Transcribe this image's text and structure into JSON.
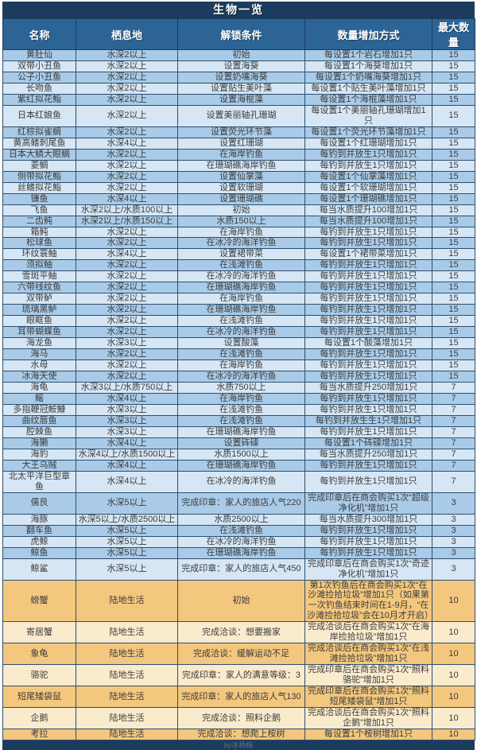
{
  "title": "生物一览",
  "footer_credit": "by冰杨梅",
  "colors": {
    "navy": "#1c3c5d",
    "header_blue": "#2c6496",
    "grid": "#2b4f70",
    "sea_row_dark": "#a9cbe8",
    "sea_row_light": "#d6e6f4",
    "land_row_dark": "#f3c77d",
    "land_row_light": "#fbebcd"
  },
  "table": {
    "columns": [
      "名称",
      "栖息地",
      "解锁条件",
      "数量增加方式",
      "最大数量"
    ],
    "land_habitat_label": "陆地生活",
    "rows": [
      [
        "黄肚仙",
        "水深2以上",
        "初始",
        "每设置1个岩石增加1只",
        "15"
      ],
      [
        "双带小丑鱼",
        "水深2以上",
        "设置海葵",
        "每设置1个海葵增加1只",
        "15"
      ],
      [
        "公子小丑鱼",
        "水深2以上",
        "设置奶嘴海葵",
        "每设置1个奶嘴海葵增加1只",
        "15"
      ],
      [
        "长吻鱼",
        "水深2以上",
        "设置贴生美叶藻",
        "每设置1个贴生美叶藻增加1只",
        "15"
      ],
      [
        "紫红拟花鮨",
        "水深2以上",
        "设置海棍藻",
        "每设置1个海棍藻增加1只",
        "15"
      ],
      [
        "日本红娘鱼",
        "水深2以上",
        "设置美丽轴孔珊瑚",
        "每设置1个美丽轴孔珊瑚增加1只",
        "15"
      ],
      [
        "红棕拟雀鲷",
        "水深2以上",
        "设置荧光环节藻",
        "每设置1个荧光环节藻增加1只",
        "15"
      ],
      [
        "黄高鳍刺尾鱼",
        "水深4以上",
        "设置红珊瑚",
        "每设置1个红珊瑚增加1只",
        "15"
      ],
      [
        "日本大鳞大眼鲷",
        "水深2以上",
        "在海岸钓鱼",
        "每钓到并放生1只增加1只",
        "15"
      ],
      [
        "菱鲷",
        "水深2以上",
        "在珊瑚礁海岸钓鱼",
        "每钓到并放生1只增加1只",
        "15"
      ],
      [
        "侧带拟花鮨",
        "水深2以上",
        "设置仙掌藻",
        "每设置1个仙掌藻增加1只",
        "15"
      ],
      [
        "丝鳍拟花鮨",
        "水深2以上",
        "设置软珊瑚",
        "每设置1个软珊瑚增加1只",
        "15"
      ],
      [
        "镰鱼",
        "水深4以上",
        "设置珊瑚礁",
        "每设置1个珊瑚礁增加1只",
        "15"
      ],
      [
        "飞鱼",
        "水深2以上/水质100以上",
        "初始",
        "每当水质提升100增加1只",
        "15"
      ],
      [
        "二齿鲀",
        "水深2以上/水质150以上",
        "水质150以上",
        "每当水质提升100增加1只",
        "15"
      ],
      [
        "箱鲀",
        "水深2以上",
        "在海岸钓鱼",
        "每钓到并放生1只增加1只",
        "15"
      ],
      [
        "松球鱼",
        "水深2以上",
        "在冰冷的海洋钓鱼",
        "每钓到并放生1只增加1只",
        "15"
      ],
      [
        "环纹蓑鲉",
        "水深4以上",
        "设置裙带菜",
        "每设置1个裙带菜增加1只",
        "15"
      ],
      [
        "须拟鲉",
        "水深2以上",
        "在浅滩钓鱼",
        "每钓到并放生1只增加1只",
        "15"
      ],
      [
        "雪斑平鲉",
        "水深2以上",
        "在冰冷的海洋钓鱼",
        "每钓到并放生1只增加1只",
        "15"
      ],
      [
        "六带线纹鱼",
        "水深2以上",
        "在珊瑚礁海岸钓鱼",
        "每钓到并放生1只增加1只",
        "15"
      ],
      [
        "双带鲈",
        "水深2以上",
        "在海岸钓鱼",
        "每钓到并放生1只增加1只",
        "15"
      ],
      [
        "琉璃黑鲈",
        "水深2以上",
        "在珊瑚礁海岸钓鱼",
        "每钓到并放生1只增加1只",
        "15"
      ],
      [
        "眼眶鱼",
        "水深2以上",
        "在浅滩钓鱼",
        "每钓到并放生1只增加1只",
        "15"
      ],
      [
        "耳带蝴蝶鱼",
        "水深2以上",
        "在冰冷的海洋钓鱼",
        "每钓到并放生1只增加1只",
        "15"
      ],
      [
        "海龙鱼",
        "水深3以上",
        "设置酸藻",
        "每设置1个酸藻增加1只",
        "15"
      ],
      [
        "海马",
        "水深2以上",
        "在浅滩钓鱼",
        "每钓到并放生1只增加1只",
        "15"
      ],
      [
        "水母",
        "水深2以上",
        "在海岸钓鱼",
        "每钓到并放生1只增加1只",
        "15"
      ],
      [
        "冰海天使",
        "水深2以上",
        "在冰冷的海洋钓鱼",
        "每钓到并放生1只增加1只",
        "15"
      ],
      [
        "海龟",
        "水深3以上/水质750以上",
        "水质750以上",
        "每当水质提升250增加1只",
        "7"
      ],
      [
        "鳐",
        "水深4以上",
        "在海岸钓鱼",
        "每钓到并放生1只增加1只",
        "7"
      ],
      [
        "多指鞭冠鮟鱇",
        "水深3以上",
        "在浅滩钓鱼",
        "每钓到并放生1只增加1只",
        "7"
      ],
      [
        "曲纹唇鱼",
        "水深3以上",
        "在浅滩钓鱼",
        "每钓到并放生生1只增加1只",
        "7"
      ],
      [
        "腔棘鱼",
        "水深3以上",
        "在珊瑚礁海岸钓鱼",
        "每钓到并放生1只增加1只",
        "7"
      ],
      [
        "海獭",
        "水深4以上",
        "设置砗磲",
        "每设置1个砗磲增加1只",
        "7"
      ],
      [
        "海豹",
        "水深4以上/水质1500以上",
        "水质1500以上",
        "每当水质提升250增加1只",
        "7"
      ],
      [
        "大王乌贼",
        "水深4以上",
        "在珊瑚礁海岸钓鱼",
        "每钓到并放生1只增加1只",
        "7"
      ],
      [
        "北太平洋巨型章鱼",
        "水深4以上",
        "在冰冷的海洋钓鱼",
        "每钓到并放生1只增加1只",
        "7"
      ],
      [
        "儒艮",
        "水深5以上",
        "完成印章：家人的旅店人气220",
        "完成印章后在商会购买1次“超级净化机”增加1只",
        "3"
      ],
      [
        "海豚",
        "水深5以上/水质2500以上",
        "水质2500以上",
        "每当水质提升300增加1只",
        "3"
      ],
      [
        "翻车鱼",
        "水深5以上",
        "在浅滩钓鱼",
        "每钓到并放生1只增加1只",
        "3"
      ],
      [
        "虎鲸",
        "水深5以上",
        "在冰冷的海洋钓鱼",
        "每钓到并放生1只增加1只",
        "3"
      ],
      [
        "鲸鱼",
        "水深5以上",
        "在珊瑚礁海岸钓鱼",
        "每钓到并放生1只增加1只",
        "3"
      ],
      [
        "鲸鲨",
        "水深5以上",
        "完成印章：家人的旅店人气450",
        "完成印章后在商会购买1次“奇迹净化机”增加1只",
        "3"
      ],
      [
        "螃蟹",
        "陆地生活",
        "初始",
        "第1次钓鱼后在商会购买1次“在沙滩捡拾垃圾”增加1只（如果第一次钓鱼结束时间在1-9月，“在沙滩捡拾垃圾”会在10月才开启）",
        "10"
      ],
      [
        "寄居蟹",
        "陆地生活",
        "完成洽谈：想要搬家",
        "完成洽谈后在商会购买1次“在海岸捡拾垃圾”增加1只",
        "10"
      ],
      [
        "象龟",
        "陆地生活",
        "完成洽谈：缓解运动不足",
        "完成洽谈后在商会购买1次“在浅滩捡拾垃圾”增加1只",
        "10"
      ],
      [
        "骆驼",
        "陆地生活",
        "完成印章：家人的满意等级：3",
        "完成印章后在商会购买1次“照料骆驼”增加1只",
        "10"
      ],
      [
        "短尾矮袋鼠",
        "陆地生活",
        "完成印章：家人的旅店人气130",
        "完成印章后在商会购买1次“照料短尾矮袋鼠”增加1只",
        "10"
      ],
      [
        "企鹅",
        "陆地生活",
        "完成洽谈：照料企鹅",
        "完成洽谈后在商会购买1次“照料企鹅”增加1只",
        "10"
      ],
      [
        "考拉",
        "陆地生活",
        "完成洽谈：想爬上桉树",
        "每设置1个桉树增加1只",
        "10"
      ]
    ]
  }
}
